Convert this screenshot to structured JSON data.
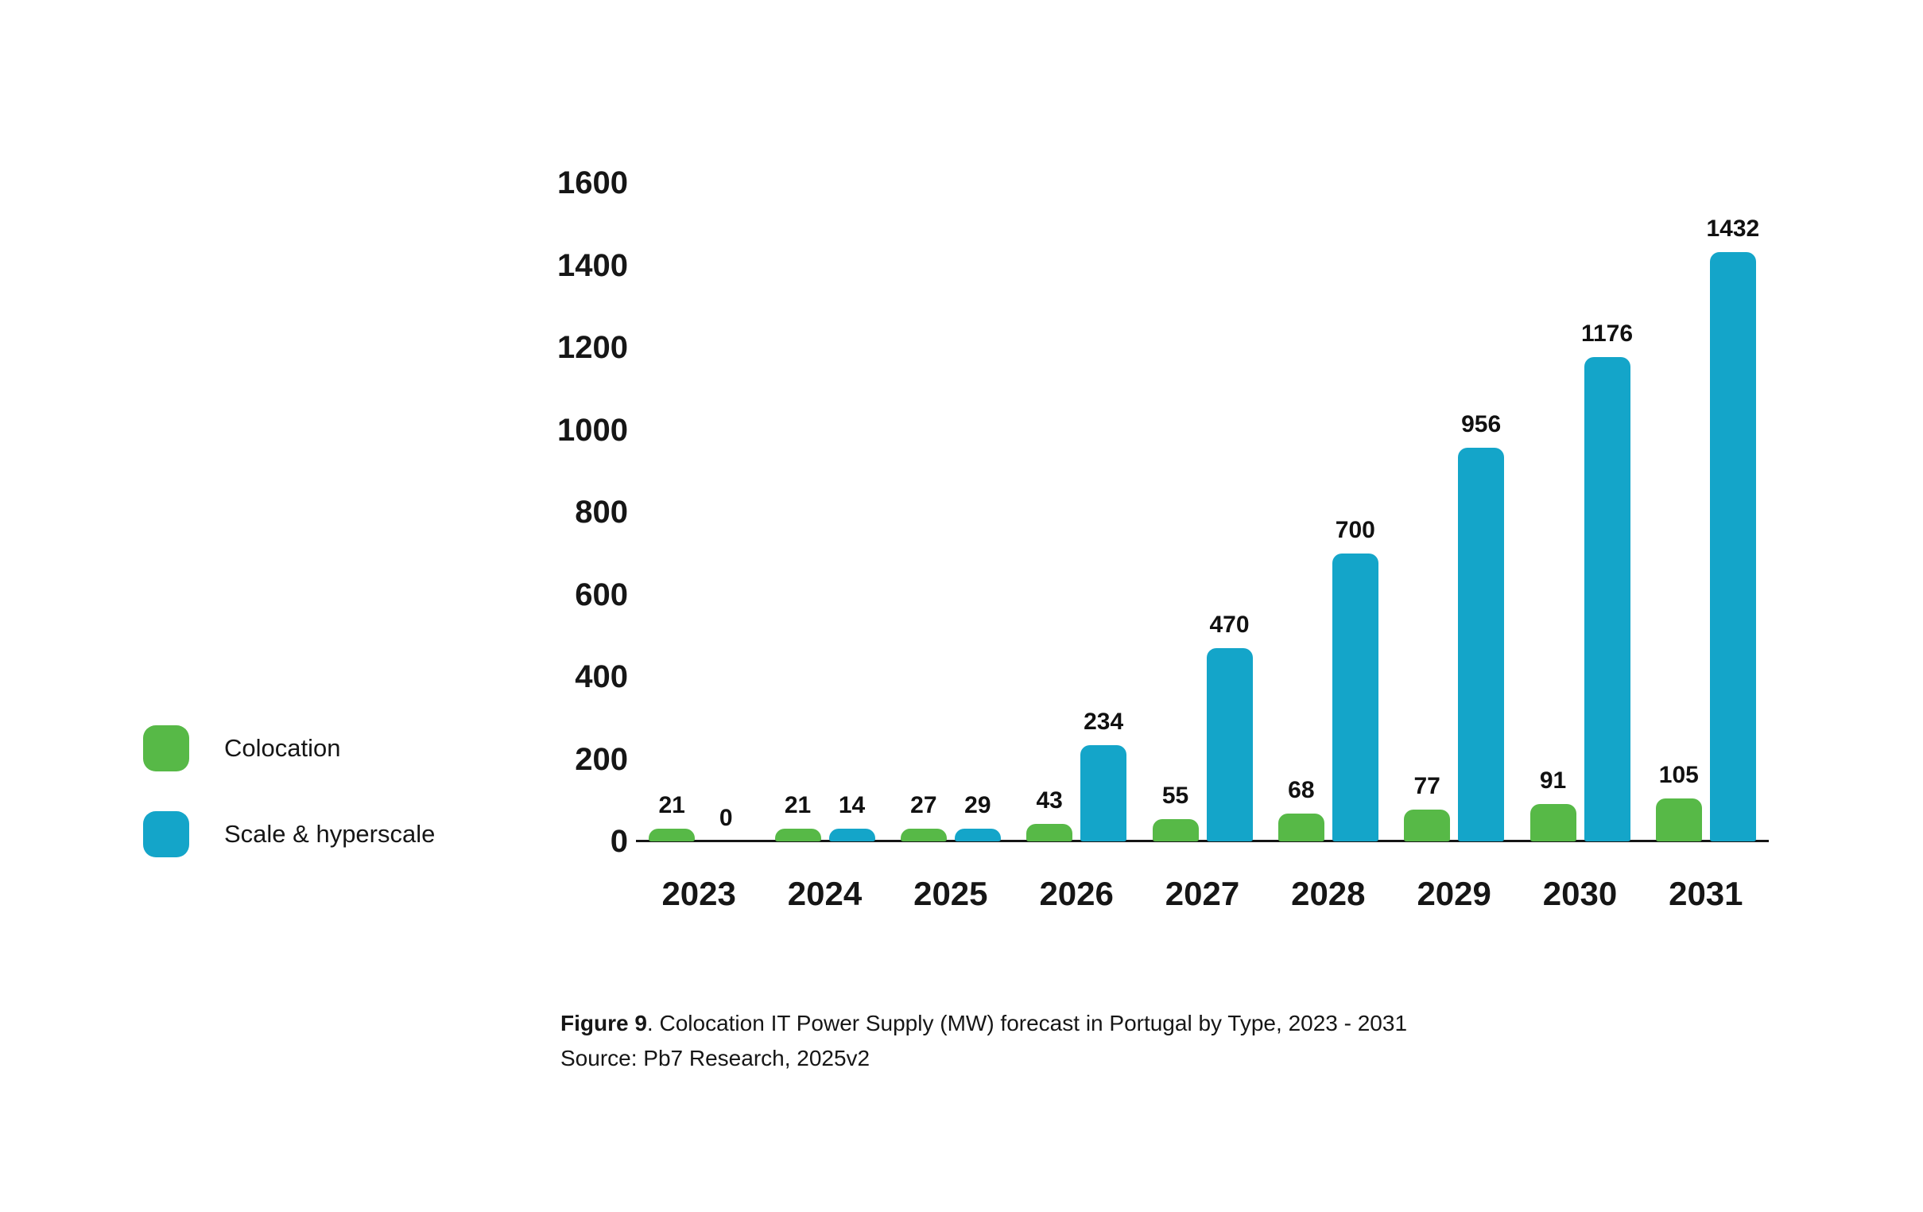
{
  "figure": {
    "caption_label": "Figure 9",
    "caption_rest": ". Colocation IT Power Supply (MW) forecast in Portugal by Type, 2023 - 2031",
    "source": "Source: Pb7 Research, 2025v2"
  },
  "colors": {
    "colocation": "#57b947",
    "scale_hyperscale": "#14a5c9",
    "axis": "#161616",
    "text": "#161616"
  },
  "legend": {
    "items": [
      {
        "label": "Colocation",
        "color": "#57b947"
      },
      {
        "label": "Scale & hyperscale",
        "color": "#14a5c9"
      }
    ]
  },
  "chart_data": {
    "type": "bar",
    "title": "Colocation IT Power Supply (MW) forecast in Portugal by Type, 2023 - 2031",
    "categories": [
      "2023",
      "2024",
      "2025",
      "2026",
      "2027",
      "2028",
      "2029",
      "2030",
      "2031"
    ],
    "series": [
      {
        "name": "Colocation",
        "color": "#57b947",
        "values": [
          21,
          21,
          27,
          43,
          55,
          68,
          77,
          91,
          105
        ]
      },
      {
        "name": "Scale & hyperscale",
        "color": "#14a5c9",
        "values": [
          0,
          14,
          29,
          234,
          470,
          700,
          956,
          1176,
          1432
        ]
      }
    ],
    "xlabel": "",
    "ylabel": "",
    "ylim": [
      0,
      1600
    ],
    "ytick_step": 200,
    "grid": false,
    "legend_position": "left",
    "data_labels": true
  }
}
